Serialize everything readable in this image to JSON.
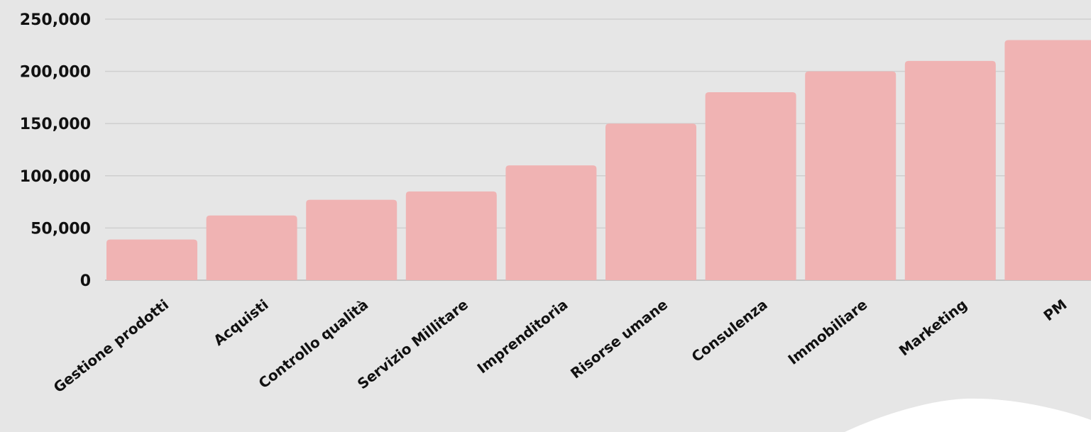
{
  "chart_data": {
    "type": "bar",
    "title": "",
    "xlabel": "",
    "ylabel": "",
    "categories": [
      "Gestione prodotti",
      "Acquisti",
      "Controllo qualità",
      "Servizio Millitare",
      "Imprenditoria",
      "Risorse umane",
      "Consulenza",
      "Immobiliare",
      "Marketing",
      "PM"
    ],
    "values": [
      39000,
      62000,
      77000,
      85000,
      110000,
      150000,
      180000,
      200000,
      210000,
      230000
    ],
    "ylim": [
      0,
      250000
    ],
    "yticks": [
      0,
      50000,
      100000,
      150000,
      200000,
      250000
    ],
    "ytick_labels": [
      "0",
      "50,000",
      "100,000",
      "150,000",
      "200,000",
      "250,000"
    ],
    "grid": true,
    "legend": "none",
    "colors": {
      "bar": "#f0b3b3",
      "background": "#e6e6e6",
      "grid": "#cfcfcf",
      "text": "#111111",
      "decor_circle": "#ffffff"
    }
  }
}
